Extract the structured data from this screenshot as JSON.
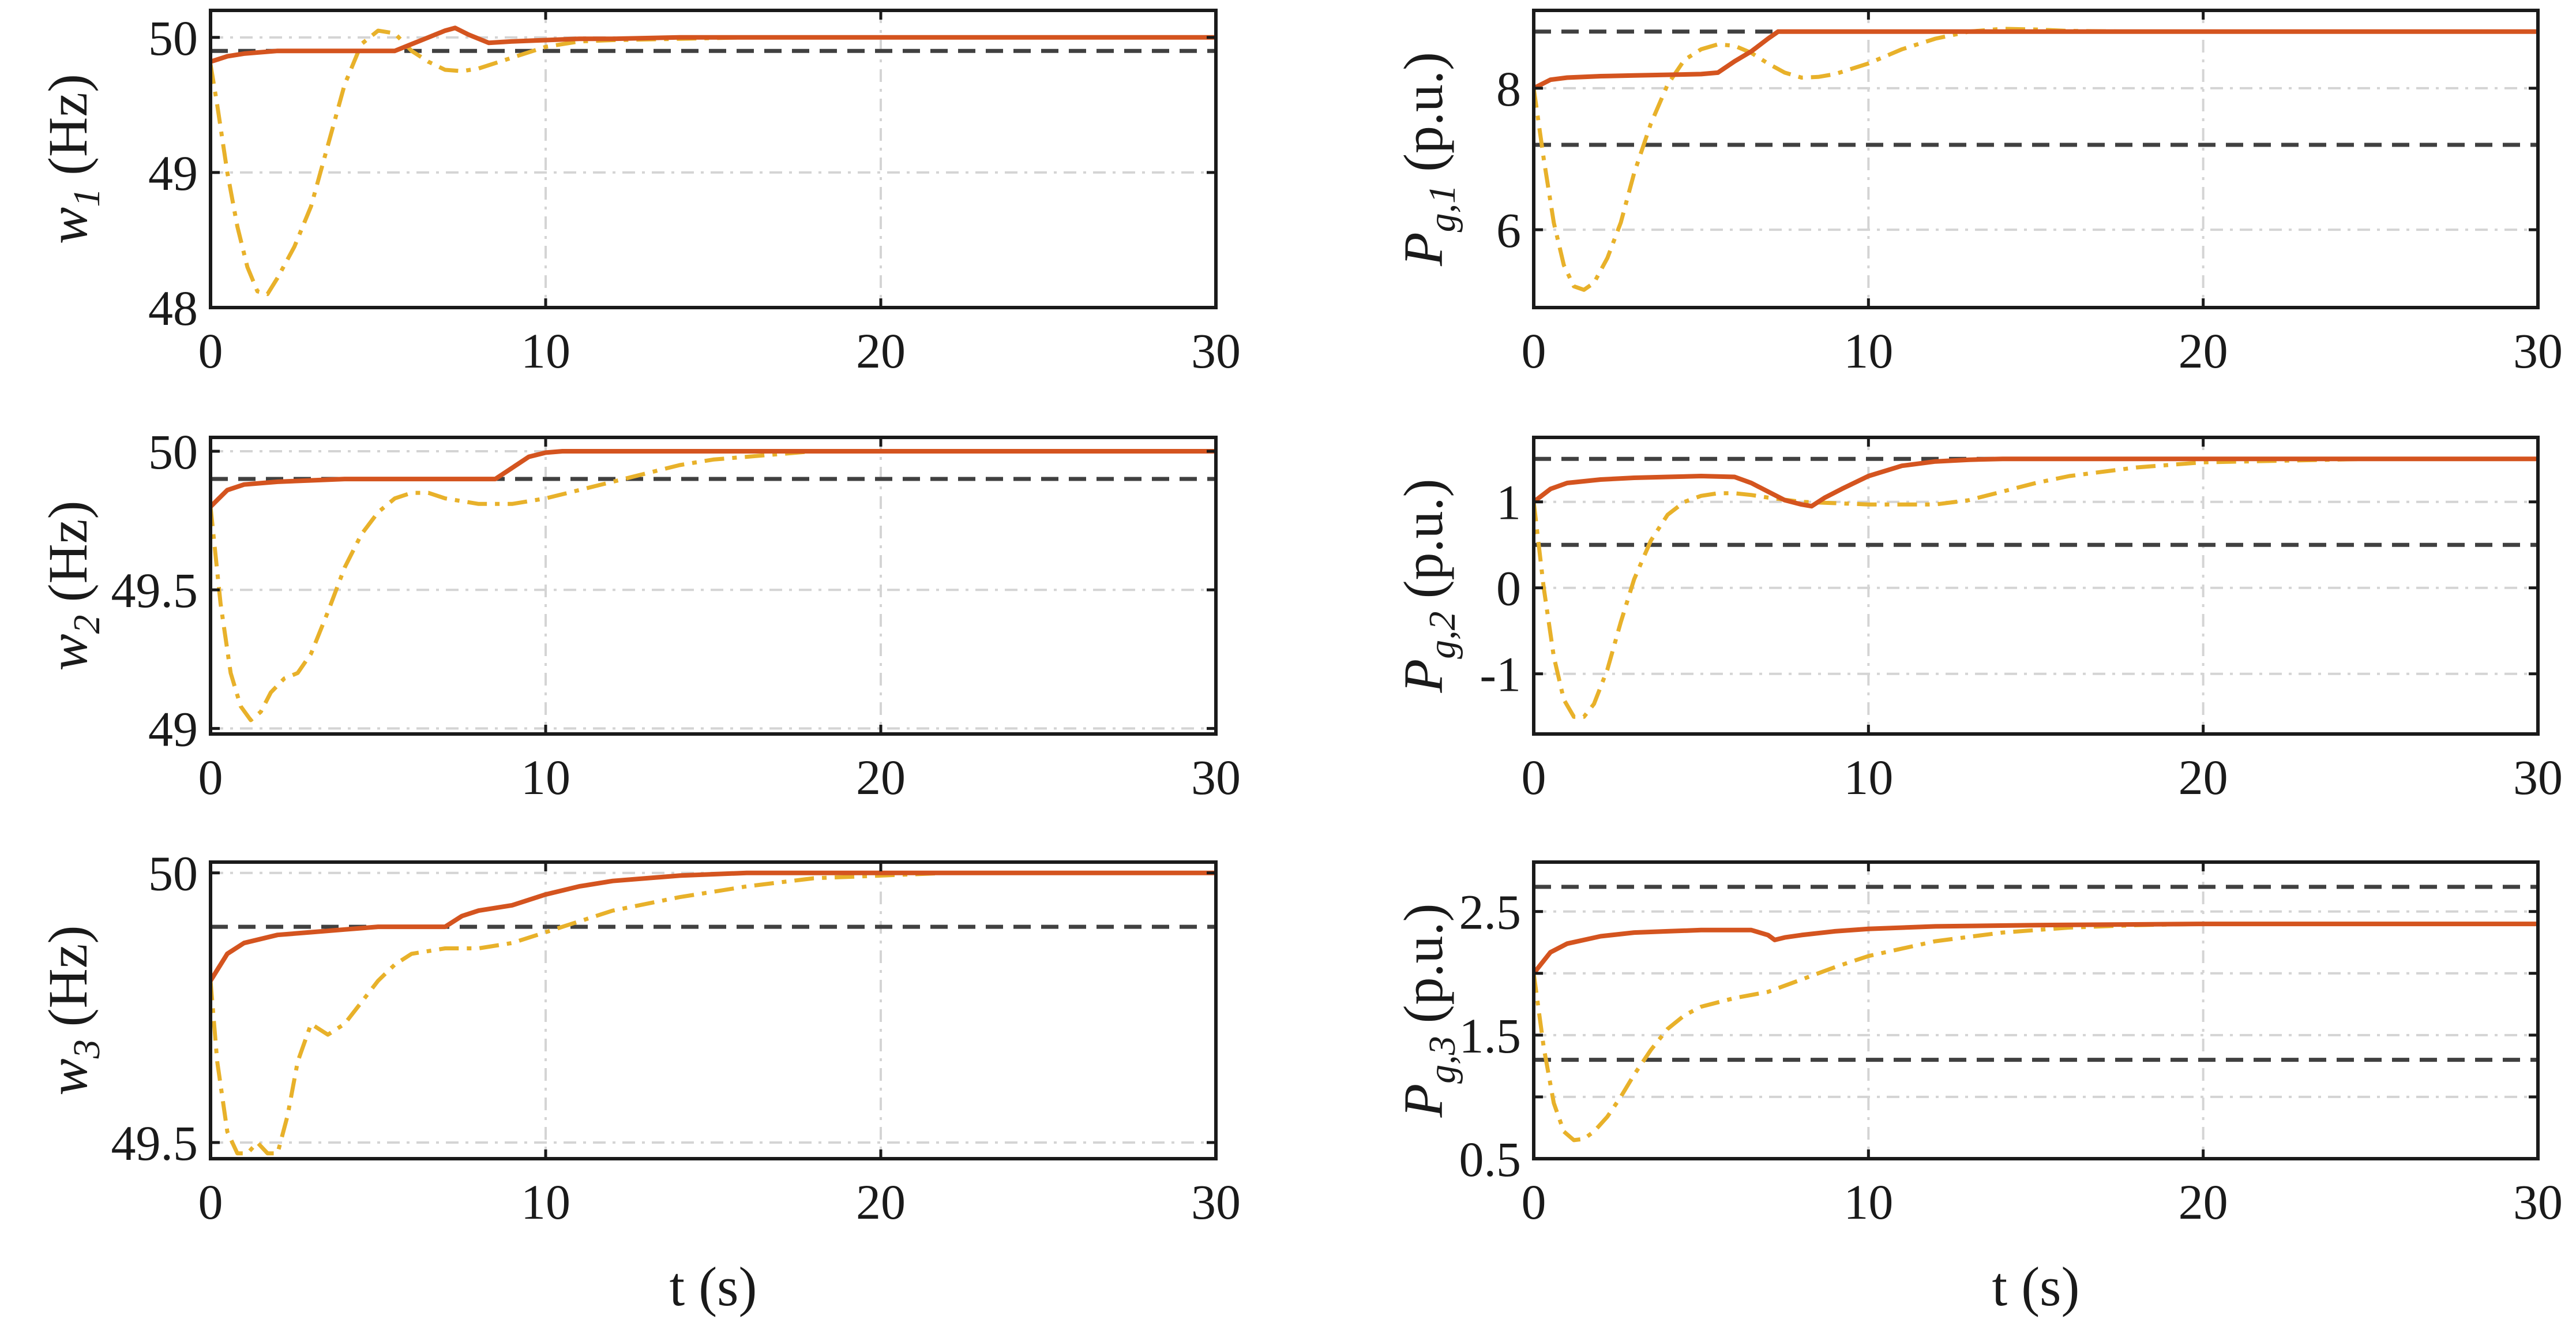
{
  "figure": {
    "colors": {
      "series_solid": "#d4541f",
      "series_dashdot": "#e8b12a",
      "limit": "#404040",
      "grid": "#d4d4d4"
    }
  },
  "chart_data": [
    {
      "type": "line",
      "xlabel": "",
      "ylabel": {
        "symbol": "w",
        "sub": "1",
        "unit": "(Hz)"
      },
      "xlim": [
        0,
        30
      ],
      "ylim": [
        48,
        50.2
      ],
      "xticks": [
        0,
        10,
        20,
        30
      ],
      "xtick_labels": [
        "0",
        "10",
        "20",
        "30"
      ],
      "yticks": [
        48,
        49,
        50
      ],
      "ytick_labels": [
        "48",
        "49",
        "50"
      ],
      "grid": true,
      "limits": [
        49.9
      ],
      "series": [
        {
          "style": "solid",
          "x": [
            0,
            0.5,
            1,
            2,
            3,
            4,
            5,
            5.5,
            6,
            6.5,
            7,
            7.3,
            7.7,
            8.3,
            9,
            10,
            11,
            12,
            14,
            16,
            20,
            25,
            30
          ],
          "y": [
            49.82,
            49.86,
            49.88,
            49.9,
            49.9,
            49.9,
            49.9,
            49.9,
            49.95,
            50.0,
            50.05,
            50.07,
            50.02,
            49.96,
            49.97,
            49.98,
            49.99,
            49.99,
            50.0,
            50.0,
            50.0,
            50.0,
            50.0
          ]
        },
        {
          "style": "dashdot",
          "x": [
            0,
            0.2,
            0.5,
            0.8,
            1.1,
            1.4,
            1.7,
            2.0,
            2.5,
            3.0,
            3.5,
            4.0,
            4.5,
            5.0,
            5.5,
            6.0,
            6.5,
            7.0,
            7.5,
            8.0,
            9.0,
            10,
            11,
            12,
            14,
            16,
            20,
            25,
            30
          ],
          "y": [
            49.8,
            49.5,
            49.0,
            48.6,
            48.3,
            48.12,
            48.1,
            48.22,
            48.45,
            48.75,
            49.2,
            49.65,
            49.95,
            50.05,
            50.03,
            49.9,
            49.82,
            49.76,
            49.75,
            49.77,
            49.85,
            49.93,
            49.97,
            49.98,
            49.99,
            50.0,
            50.0,
            50.0,
            50.0
          ]
        }
      ]
    },
    {
      "type": "line",
      "xlabel": "",
      "ylabel": {
        "symbol": "P",
        "sub": "g,1",
        "unit": "(p.u.)"
      },
      "xlim": [
        0,
        30
      ],
      "ylim": [
        4.9,
        9.1
      ],
      "xticks": [
        0,
        10,
        20,
        30
      ],
      "xtick_labels": [
        "0",
        "10",
        "20",
        "30"
      ],
      "yticks": [
        6,
        8
      ],
      "ytick_labels": [
        "6",
        "8"
      ],
      "grid": true,
      "limits": [
        8.8,
        7.2
      ],
      "series": [
        {
          "style": "solid",
          "x": [
            0,
            0.5,
            1,
            2,
            3,
            4,
            5,
            5.5,
            6,
            6.5,
            7,
            7.3,
            8,
            10,
            15,
            20,
            25,
            30
          ],
          "y": [
            8.0,
            8.12,
            8.15,
            8.17,
            8.18,
            8.19,
            8.2,
            8.22,
            8.38,
            8.52,
            8.7,
            8.8,
            8.8,
            8.8,
            8.8,
            8.8,
            8.8,
            8.8
          ]
        },
        {
          "style": "dashdot",
          "x": [
            0,
            0.3,
            0.6,
            0.9,
            1.2,
            1.5,
            1.8,
            2.2,
            2.6,
            3.0,
            3.5,
            4.0,
            4.5,
            5.0,
            5.5,
            6.0,
            6.5,
            7.0,
            7.5,
            8.0,
            8.5,
            9.0,
            10,
            11,
            12,
            13,
            14,
            15,
            16,
            18,
            20,
            25,
            30
          ],
          "y": [
            8.0,
            7.0,
            6.1,
            5.5,
            5.2,
            5.15,
            5.25,
            5.6,
            6.1,
            6.8,
            7.5,
            8.05,
            8.4,
            8.55,
            8.62,
            8.6,
            8.5,
            8.35,
            8.22,
            8.15,
            8.16,
            8.2,
            8.35,
            8.55,
            8.7,
            8.8,
            8.84,
            8.83,
            8.81,
            8.8,
            8.8,
            8.8,
            8.8
          ]
        }
      ]
    },
    {
      "type": "line",
      "xlabel": "",
      "ylabel": {
        "symbol": "w",
        "sub": "2",
        "unit": "(Hz)"
      },
      "xlim": [
        0,
        30
      ],
      "ylim": [
        48.98,
        50.05
      ],
      "xticks": [
        0,
        10,
        20,
        30
      ],
      "xtick_labels": [
        "0",
        "10",
        "20",
        "30"
      ],
      "yticks": [
        49,
        49.5,
        50
      ],
      "ytick_labels": [
        "49",
        "49.5",
        "50"
      ],
      "grid": true,
      "limits": [
        49.9
      ],
      "series": [
        {
          "style": "solid",
          "x": [
            0,
            0.5,
            1,
            2,
            3,
            4,
            5,
            6,
            7,
            8,
            8.5,
            9,
            9.5,
            10,
            10.5,
            11,
            12,
            14,
            16,
            20,
            25,
            30
          ],
          "y": [
            49.8,
            49.86,
            49.88,
            49.89,
            49.895,
            49.9,
            49.9,
            49.9,
            49.9,
            49.9,
            49.9,
            49.94,
            49.98,
            49.995,
            50.0,
            50.0,
            50.0,
            50.0,
            50.0,
            50.0,
            50.0,
            50.0
          ]
        },
        {
          "style": "dashdot",
          "x": [
            0,
            0.3,
            0.6,
            0.9,
            1.2,
            1.5,
            1.8,
            2.2,
            2.6,
            3.0,
            3.5,
            4.0,
            4.5,
            5.0,
            5.5,
            6.0,
            6.5,
            7.0,
            8.0,
            9.0,
            10,
            11,
            12,
            13,
            14,
            15,
            16,
            17,
            18,
            20,
            25,
            30
          ],
          "y": [
            49.8,
            49.45,
            49.2,
            49.08,
            49.03,
            49.06,
            49.13,
            49.18,
            49.2,
            49.27,
            49.42,
            49.58,
            49.7,
            49.78,
            49.83,
            49.85,
            49.85,
            49.83,
            49.81,
            49.81,
            49.83,
            49.86,
            49.89,
            49.92,
            49.95,
            49.97,
            49.98,
            49.99,
            50.0,
            50.0,
            50.0,
            50.0
          ]
        }
      ]
    },
    {
      "type": "line",
      "xlabel": "",
      "ylabel": {
        "symbol": "P",
        "sub": "g,2",
        "unit": "(p.u.)"
      },
      "xlim": [
        0,
        30
      ],
      "ylim": [
        -1.7,
        1.75
      ],
      "xticks": [
        0,
        10,
        20,
        30
      ],
      "xtick_labels": [
        "0",
        "10",
        "20",
        "30"
      ],
      "yticks": [
        -1,
        0,
        1
      ],
      "ytick_labels": [
        "-1",
        "0",
        "1"
      ],
      "grid": true,
      "limits": [
        1.5,
        0.5
      ],
      "series": [
        {
          "style": "solid",
          "x": [
            0,
            0.5,
            1,
            2,
            3,
            4,
            5,
            6,
            6.5,
            7,
            7.5,
            8.0,
            8.3,
            8.7,
            9.2,
            10,
            11,
            12,
            13,
            14,
            16,
            20,
            25,
            30
          ],
          "y": [
            1.0,
            1.15,
            1.22,
            1.26,
            1.28,
            1.29,
            1.3,
            1.29,
            1.22,
            1.12,
            1.02,
            0.97,
            0.95,
            1.05,
            1.15,
            1.3,
            1.42,
            1.47,
            1.49,
            1.5,
            1.5,
            1.5,
            1.5,
            1.5
          ]
        },
        {
          "style": "dashdot",
          "x": [
            0,
            0.3,
            0.6,
            0.9,
            1.2,
            1.5,
            1.8,
            2.2,
            2.6,
            3.0,
            3.5,
            4.0,
            4.5,
            5.0,
            5.5,
            6.0,
            6.5,
            7.0,
            8.0,
            10,
            12,
            13,
            14,
            15,
            16,
            18,
            20,
            25,
            30
          ],
          "y": [
            1.0,
            0.0,
            -0.8,
            -1.3,
            -1.5,
            -1.5,
            -1.35,
            -0.95,
            -0.4,
            0.1,
            0.55,
            0.85,
            1.0,
            1.07,
            1.1,
            1.1,
            1.08,
            1.05,
            1.0,
            0.97,
            0.97,
            1.02,
            1.12,
            1.22,
            1.3,
            1.4,
            1.46,
            1.5,
            1.5
          ]
        }
      ]
    },
    {
      "type": "line",
      "xlabel": "t (s)",
      "ylabel": {
        "symbol": "w",
        "sub": "3",
        "unit": "(Hz)"
      },
      "xlim": [
        0,
        30
      ],
      "ylim": [
        49.47,
        50.02
      ],
      "xticks": [
        0,
        10,
        20,
        30
      ],
      "xtick_labels": [
        "0",
        "10",
        "20",
        "30"
      ],
      "yticks": [
        49.5,
        50
      ],
      "ytick_labels": [
        "49.5",
        "50"
      ],
      "grid": true,
      "limits": [
        49.9
      ],
      "series": [
        {
          "style": "solid",
          "x": [
            0,
            0.5,
            1,
            2,
            3,
            4,
            5,
            6,
            7,
            7.5,
            8,
            9,
            10,
            11,
            12,
            14,
            16,
            18,
            20,
            25,
            30
          ],
          "y": [
            49.8,
            49.85,
            49.87,
            49.885,
            49.89,
            49.895,
            49.9,
            49.9,
            49.9,
            49.92,
            49.93,
            49.94,
            49.96,
            49.975,
            49.985,
            49.995,
            50.0,
            50.0,
            50.0,
            50.0,
            50.0
          ]
        },
        {
          "style": "dashdot",
          "x": [
            0,
            0.2,
            0.5,
            0.8,
            1.1,
            1.4,
            1.7,
            2.0,
            2.3,
            2.6,
            3.0,
            3.5,
            4.0,
            4.5,
            5.0,
            5.5,
            6.0,
            7.0,
            8.0,
            9.0,
            10,
            11,
            12,
            14,
            16,
            18,
            20,
            22,
            25,
            30
          ],
          "y": [
            49.8,
            49.65,
            49.52,
            49.48,
            49.48,
            49.5,
            49.48,
            49.48,
            49.55,
            49.65,
            49.72,
            49.7,
            49.72,
            49.76,
            49.8,
            49.83,
            49.85,
            49.86,
            49.86,
            49.87,
            49.89,
            49.91,
            49.93,
            49.955,
            49.975,
            49.99,
            49.995,
            50.0,
            50.0,
            50.0
          ]
        }
      ]
    },
    {
      "type": "line",
      "xlabel": "t (s)",
      "ylabel": {
        "symbol": "P",
        "sub": "g,3",
        "unit": "(p.u.)"
      },
      "xlim": [
        0,
        30
      ],
      "ylim": [
        0.5,
        2.9
      ],
      "xticks": [
        0,
        10,
        20,
        30
      ],
      "xtick_labels": [
        "0",
        "10",
        "20",
        "30"
      ],
      "yticks": [
        0.5,
        1,
        1.5,
        2,
        2.5
      ],
      "ytick_labels": [
        "0.5",
        "",
        "1.5",
        "",
        "2.5"
      ],
      "grid": true,
      "limits": [
        2.7,
        1.3
      ],
      "series": [
        {
          "style": "solid",
          "x": [
            0,
            0.5,
            1,
            2,
            3,
            4,
            5,
            6,
            6.5,
            7.0,
            7.2,
            7.5,
            8,
            9,
            10,
            12,
            15,
            20,
            25,
            30
          ],
          "y": [
            2.0,
            2.17,
            2.24,
            2.3,
            2.33,
            2.34,
            2.35,
            2.35,
            2.35,
            2.31,
            2.27,
            2.29,
            2.31,
            2.34,
            2.36,
            2.38,
            2.39,
            2.4,
            2.4,
            2.4
          ]
        },
        {
          "style": "dashdot",
          "x": [
            0,
            0.3,
            0.6,
            0.9,
            1.2,
            1.5,
            1.8,
            2.2,
            2.6,
            3.0,
            3.5,
            4.0,
            4.5,
            5.0,
            6.0,
            7.0,
            8.0,
            9.0,
            10,
            12,
            14,
            16,
            18,
            20,
            25,
            30
          ],
          "y": [
            2.0,
            1.4,
            0.95,
            0.72,
            0.65,
            0.66,
            0.72,
            0.84,
            1.0,
            1.18,
            1.38,
            1.55,
            1.66,
            1.73,
            1.8,
            1.85,
            1.95,
            2.05,
            2.14,
            2.26,
            2.33,
            2.37,
            2.39,
            2.4,
            2.4,
            2.4
          ]
        }
      ]
    }
  ]
}
